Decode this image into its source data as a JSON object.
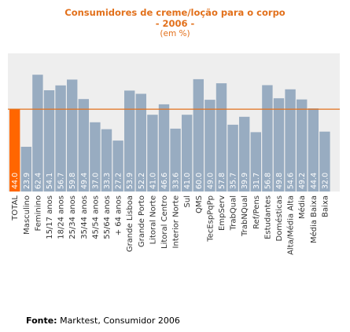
{
  "colors": {
    "plot_background": "#eeeeee",
    "bar": "#98acc1",
    "bar_highlight": "#ff6600",
    "reference_line": "#e2701b",
    "value_label": "#ffffff",
    "title": "#e2701b"
  },
  "chart_data": {
    "type": "bar",
    "title": "Consumidores de creme/loção para o corpo",
    "subtitle": "- 2006 -",
    "unit": "(em %)",
    "categories": [
      "TOTAL",
      "Masculino",
      "Feminino",
      "15/17 anos",
      "18/24 anos",
      "25/34 anos",
      "35/44 anos",
      "45/54 anos",
      "55/64 anos",
      "+ 64 anos",
      "Grande Lisboa",
      "Grande Porto",
      "Litoral Norte",
      "Litoral Centro",
      "Interior Norte",
      "Sul",
      "QMS",
      "TecEspPqPp",
      "EmpServ",
      "TrabQual",
      "TrabNQual",
      "Ref/Pens",
      "Estudantes",
      "Domésticas",
      "Alta/Média Alta",
      "Média",
      "Média Baixa",
      "Baixa"
    ],
    "values": [
      44.0,
      23.9,
      62.4,
      54.1,
      56.7,
      59.8,
      49.4,
      37.0,
      33.3,
      27.2,
      53.9,
      52.2,
      41.0,
      46.6,
      33.6,
      41.0,
      60.0,
      49.0,
      57.8,
      35.7,
      39.9,
      31.7,
      56.8,
      49.8,
      54.6,
      49.2,
      44.4,
      32.0
    ],
    "value_labels": [
      "44.0",
      "23.9",
      "62.4",
      "54.1",
      "56.7",
      "59.8",
      "49.4",
      "37.0",
      "33.3",
      "27.2",
      "53.9",
      "52.2",
      "41.0",
      "46.6",
      "33.6",
      "41.0",
      "60.0",
      "49.0",
      "57.8",
      "35.7",
      "39.9",
      "31.7",
      "56.8",
      "49.8",
      "54.6",
      "49.2",
      "44.4",
      "32.0"
    ],
    "highlight_index": 0,
    "reference_value": 44.0,
    "ylim": [
      0,
      70
    ],
    "grid": false,
    "legend": "none"
  },
  "source": {
    "label": "Fonte:",
    "text": " Marktest, Consumidor 2006"
  }
}
